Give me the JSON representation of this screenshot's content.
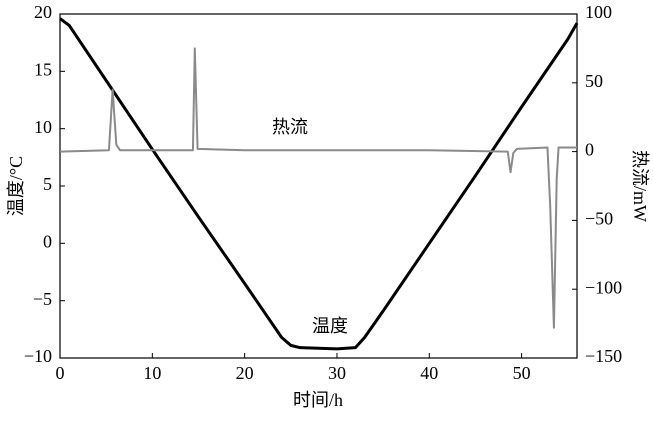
{
  "chart_data": {
    "type": "line",
    "xlabel": "时间/h",
    "ylabel": "温度/°C",
    "y2label": "热流/mW",
    "xlim": [
      0,
      56
    ],
    "xticks": [
      0,
      10,
      20,
      30,
      40,
      50
    ],
    "ylim": [
      -10,
      20
    ],
    "yticks": [
      {
        "value": -10,
        "label": "−10"
      },
      {
        "value": -5,
        "label": "−5"
      },
      0,
      5,
      10,
      15,
      20
    ],
    "y2lim": [
      -150,
      100
    ],
    "y2ticks": [
      {
        "value": -150,
        "label": "−150"
      },
      {
        "value": -100,
        "label": "−100"
      },
      {
        "value": -50,
        "label": "−50"
      },
      0,
      50,
      100
    ],
    "series": [
      {
        "name": "温度",
        "color": "#000000",
        "axis": "y",
        "x": [
          0,
          1,
          5,
          10,
          15,
          20,
          24,
          25,
          26,
          30,
          32,
          33,
          35,
          40,
          45,
          50,
          55,
          56
        ],
        "values": [
          19.6,
          19,
          14.2,
          8.2,
          2.3,
          -3.5,
          -8.2,
          -8.9,
          -9.1,
          -9.2,
          -9.1,
          -8.2,
          -5.9,
          0,
          5.9,
          11.9,
          17.8,
          19.2
        ]
      },
      {
        "name": "热流",
        "color": "#8a8a8a",
        "axis": "y2",
        "x": [
          0,
          5.3,
          5.7,
          6.1,
          6.5,
          14.4,
          14.6,
          14.9,
          20,
          40,
          48.5,
          48.8,
          49.1,
          49.5,
          52.8,
          53.1,
          53.5,
          53.8,
          54,
          56
        ],
        "values": [
          0,
          1,
          45,
          5,
          1,
          1,
          75,
          2,
          1,
          1,
          0,
          -15,
          -1,
          2,
          3,
          -40,
          -128,
          -20,
          3,
          3
        ]
      }
    ]
  }
}
